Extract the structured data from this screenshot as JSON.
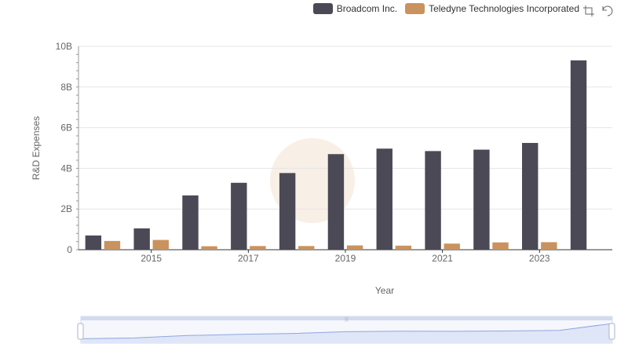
{
  "colors": {
    "broadcom": "#4a4955",
    "teledyne": "#c9925e",
    "grid": "#e6e6e6",
    "axis": "#666666",
    "zoom_fill": "#dfe6f8",
    "zoom_line": "#8fa6e0"
  },
  "legend": {
    "items": [
      {
        "label": "Broadcom Inc."
      },
      {
        "label": "Teledyne Technologies Incorporated"
      }
    ]
  },
  "toolbox": {
    "icons": [
      "zoom-icon",
      "restore-icon"
    ]
  },
  "chart_data": {
    "type": "bar",
    "categories": [
      "2014",
      "2015",
      "2016",
      "2017",
      "2018",
      "2019",
      "2020",
      "2021",
      "2022",
      "2023",
      "2024"
    ],
    "series": [
      {
        "name": "Broadcom Inc.",
        "values": [
          0.7,
          1.05,
          2.67,
          3.29,
          3.77,
          4.7,
          4.97,
          4.85,
          4.92,
          5.25,
          9.31
        ]
      },
      {
        "name": "Teledyne Technologies Incorporated",
        "values": [
          0.43,
          0.48,
          0.17,
          0.18,
          0.18,
          0.21,
          0.2,
          0.3,
          0.36,
          0.37,
          null
        ]
      }
    ],
    "value_unit": "B",
    "xlabel": "Year",
    "ylabel": "R&D Expenses",
    "ylim": [
      0,
      10
    ],
    "yticks": [
      "0",
      "2B",
      "4B",
      "6B",
      "8B",
      "10B"
    ],
    "xtick_labels": [
      "2015",
      "2017",
      "2019",
      "2021",
      "2023"
    ],
    "grid": true,
    "legend_position": "top-right",
    "datazoom": {
      "start": 0,
      "end": 100
    }
  }
}
